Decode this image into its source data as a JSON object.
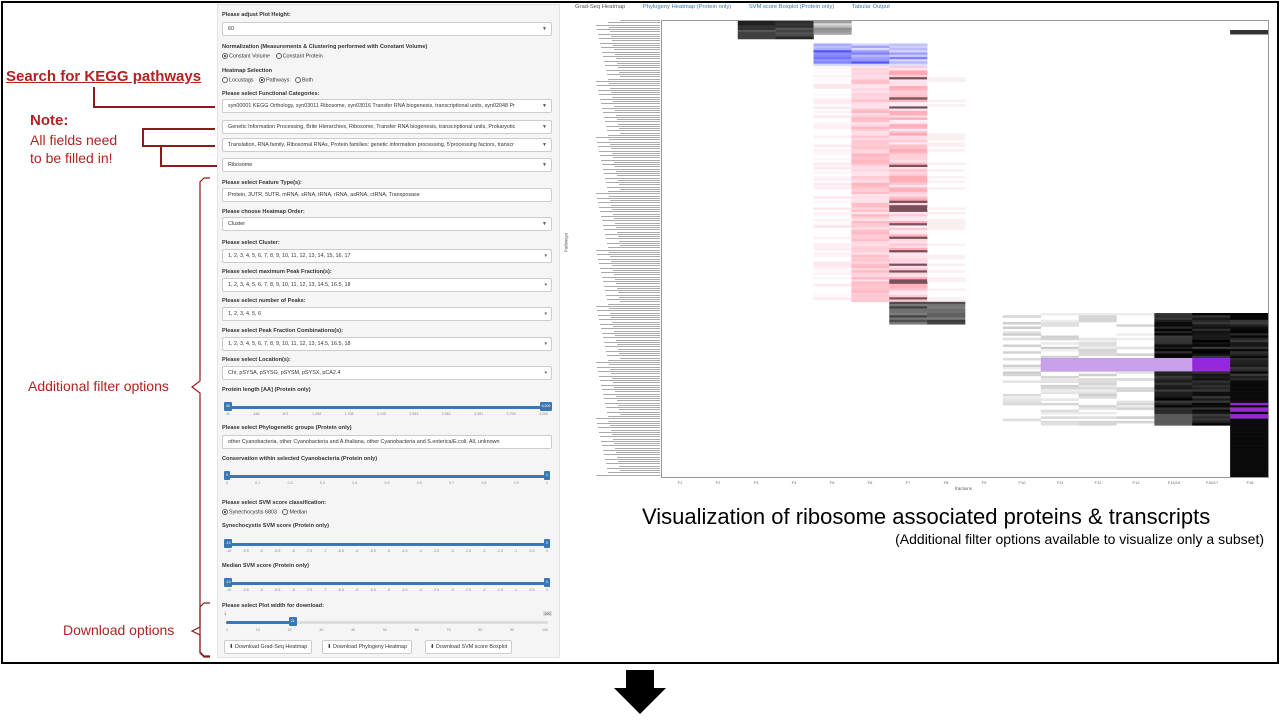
{
  "annotations": {
    "search_kegg": "Search for KEGG pathways",
    "note_title": "Note:",
    "note_line1": "All fields need",
    "note_line2": "to be filled in!",
    "filter_options": "Additional filter options",
    "download_options": "Download options",
    "viz_title": "Visualization of ribosome associated proteins & transcripts",
    "viz_subtitle": "(Additional filter options available to visualize only a subset)"
  },
  "panel": {
    "plot_height_label": "Please adjust Plot Height:",
    "plot_height_value": "60",
    "normalization_label": "Normalization (Measurements & Clustering performed with Constant Volume)",
    "norm_opt1": "Constant Volume",
    "norm_opt2": "Constant Protein",
    "heatmap_sel_label": "Heatmap Selection",
    "hm_opt1": "Locustags",
    "hm_opt2": "Pathways",
    "hm_opt3": "Both",
    "func_cat_label": "Please select Functional Categories:",
    "func_cat1": "syn00001 KEGG Orthology, syn03011 Ribosome, syn03016 Transfer RNA biogenesis, transcriptional units, syn02048 Pr",
    "func_cat2": "Genetic Information Processing, Brite Hierarchies, Ribosome, Transfer RNA biogenesis, transcriptional units, Prokaryotic",
    "func_cat3": "Translation, RNA family, Ribosomal RNAs, Protein families: genetic information processing, 5'processing factors, transcr",
    "func_cat4": "Ribosome",
    "feature_label": "Please select Feature Type(s):",
    "feature_value": "Protein, 3UTR, 5UTR, mRNA, sRNA, tRNA, rRNA, asRNA, ctRNA, Transposase",
    "order_label": "Please choose Heatmap Order:",
    "order_value": "Cluster",
    "cluster_label": "Please select Cluster:",
    "cluster_value": "1, 2, 3, 4, 5, 6, 7, 8, 9, 10, 11, 12, 13, 14, 15, 16, 17",
    "peak_frac_label": "Please select maximum Peak Fraction(s):",
    "peak_frac_value": "1, 2, 3, 4, 5, 6, 7, 8, 9, 10, 11, 12, 13, 14.5, 16.5, 18",
    "num_peaks_label": "Please select number of Peaks:",
    "num_peaks_value": "1, 2, 3, 4, 5, 6",
    "peak_comb_label": "Please select Peak Fraction Combinations(s):",
    "peak_comb_value": "1, 2, 3, 4, 5, 6, 7, 8, 9, 10, 11, 12, 13, 14.5, 16.5, 18",
    "location_label": "Please select Location(s):",
    "location_value": "Chr, pSYSA, pSYSG, pSYSM, pSYSX, pCA2.4",
    "protlen_label": "Protein length [AA] (Protein only)",
    "protlen_min": "30",
    "protlen_max": "4,200",
    "phylo_label": "Please select Phylogenetic groups (Protein only)",
    "phylo_value": "other Cyanobacteria, other Cyanobacteria and A.thaliana, other Cyanobacteria and S.enterica/E.coli, All, unknown",
    "conserv_label": "Conservation within selected Cyanobacteria (Protein only)",
    "conserv_min": "0",
    "conserv_max": "1",
    "svm_class_label": "Please select SVM score classification:",
    "svm_opt1": "Synechocystis 6803",
    "svm_opt2": "Median",
    "syn_svm_label": "Synechocystis SVM score (Protein only)",
    "syn_svm_min": "-10",
    "syn_svm_max": "0",
    "med_svm_label": "Median SVM score (Protein only)",
    "med_svm_min": "-10",
    "med_svm_max": "0",
    "plot_width_label": "Please select Plot width for download:",
    "plot_width_min": "1",
    "plot_width_value": "21",
    "plot_width_max": "100",
    "btn_gradseq": "Download Grad-Seq Heatmap",
    "btn_phylo": "Download Phylogeny Heatmap",
    "btn_svm": "Download SVM score Boxplot"
  },
  "tabs": [
    "Grad-Seq Heatmap",
    "Phylogeny Heatmap (Protein only)",
    "SVM score Boxplot (Protein only)",
    "Tabular Output"
  ],
  "heatmap": {
    "ylabel": "Pathways",
    "xlabel": "fractions",
    "fractions": [
      "F1",
      "F2",
      "F3",
      "F4",
      "F5",
      "F6",
      "F7",
      "F8",
      "F9",
      "F10",
      "F11",
      "F12",
      "F13",
      "F14/15",
      "F16/17",
      "F18"
    ]
  },
  "protlen_ticks": [
    "30",
    "448",
    "871",
    "1,288",
    "1,708",
    "2,125",
    "2,543",
    "2,962",
    "3,381",
    "3,799",
    "4,200"
  ],
  "conserv_ticks": [
    "0",
    "0.1",
    "0.2",
    "0.3",
    "0.4",
    "0.5",
    "0.6",
    "0.7",
    "0.8",
    "0.9",
    "1"
  ],
  "svm_ticks": [
    "-10",
    "-9.5",
    "-9",
    "-8.5",
    "-8",
    "-7.5",
    "-7",
    "-6.5",
    "-6",
    "-5.5",
    "-5",
    "-4.5",
    "-4",
    "-3.5",
    "-3",
    "-2.5",
    "-2",
    "-1.5",
    "-1",
    "-0.5",
    "0"
  ],
  "width_ticks": [
    "1",
    "10",
    "20",
    "30",
    "40",
    "50",
    "60",
    "70",
    "80",
    "90",
    "100"
  ]
}
